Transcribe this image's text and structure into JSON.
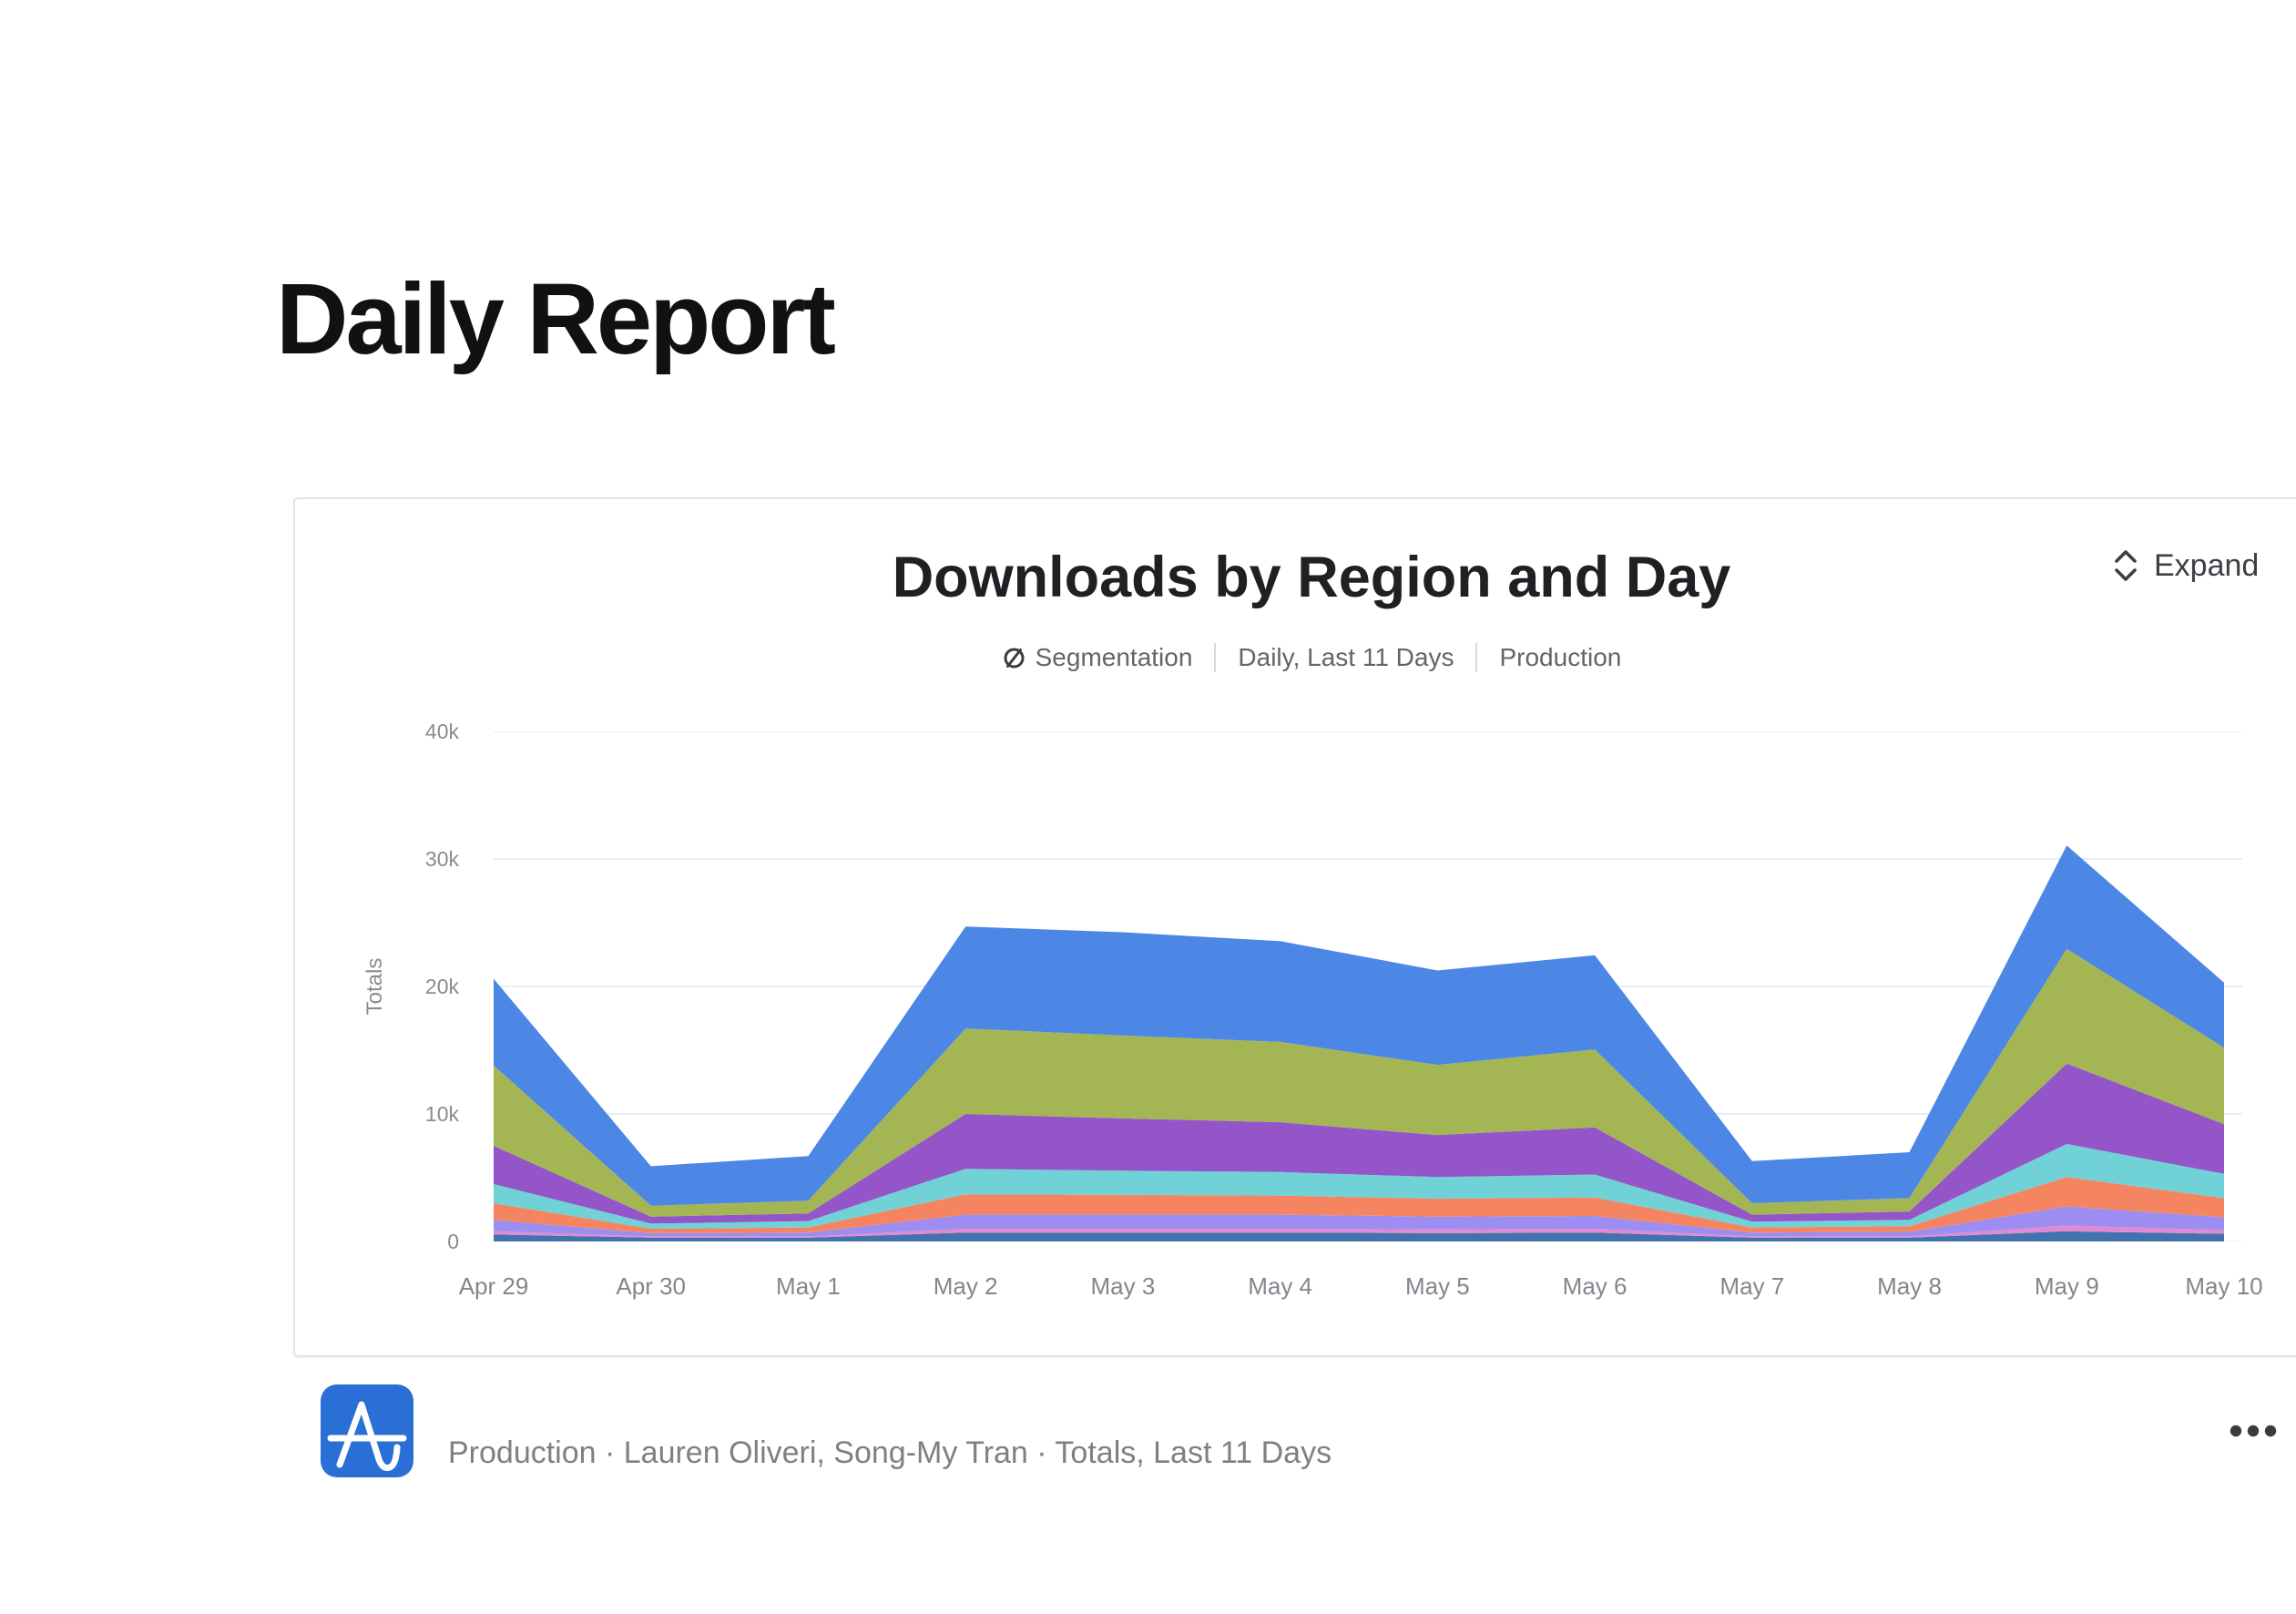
{
  "page": {
    "title": "Daily Report"
  },
  "chart_card": {
    "title": "Downloads by Region and Day",
    "subtitle": {
      "chart_type": "Segmentation",
      "date_range": "Daily, Last 11 Days",
      "environment": "Production"
    },
    "expand_label": "Expand",
    "icons": {
      "segmentation": "circle-slash-segmentation-icon",
      "expand": "chevrons-up-down-icon"
    }
  },
  "chart_data": {
    "type": "area",
    "stacked": true,
    "title": "Downloads by Region and Day",
    "xlabel": "",
    "ylabel": "Totals",
    "ylim": [
      0,
      40000
    ],
    "grid": true,
    "legend": "none",
    "categories": [
      "Apr 29",
      "Apr 30",
      "May 1",
      "May 2",
      "May 3",
      "May 4",
      "May 5",
      "May 6",
      "May 7",
      "May 8",
      "May 9",
      "May 10"
    ],
    "y_ticks": [
      {
        "label": "0",
        "value": 0
      },
      {
        "label": "10k",
        "value": 10000
      },
      {
        "label": "20k",
        "value": 20000
      },
      {
        "label": "30k",
        "value": 30000
      },
      {
        "label": "40k",
        "value": 40000
      }
    ],
    "series": [
      {
        "name": "steel-blue",
        "color": "#4273ad",
        "values": [
          550,
          300,
          300,
          700,
          700,
          700,
          650,
          700,
          300,
          300,
          800,
          600
        ]
      },
      {
        "name": "pink",
        "color": "#e189d3",
        "values": [
          250,
          100,
          100,
          300,
          300,
          300,
          300,
          300,
          100,
          100,
          450,
          300
        ]
      },
      {
        "name": "lavender",
        "color": "#9d8df0",
        "values": [
          900,
          250,
          300,
          1100,
          1100,
          1100,
          1000,
          1000,
          300,
          350,
          1500,
          1000
        ]
      },
      {
        "name": "orange",
        "color": "#f58560",
        "values": [
          1300,
          350,
          400,
          1600,
          1550,
          1500,
          1400,
          1450,
          400,
          450,
          2300,
          1500
        ]
      },
      {
        "name": "teal",
        "color": "#70d1d7",
        "values": [
          1500,
          400,
          500,
          2000,
          1900,
          1850,
          1700,
          1800,
          450,
          500,
          2600,
          1900
        ]
      },
      {
        "name": "purple",
        "color": "#9455c8",
        "values": [
          3000,
          550,
          600,
          4300,
          4100,
          3900,
          3300,
          3700,
          550,
          650,
          6300,
          3900
        ]
      },
      {
        "name": "olive",
        "color": "#a4b654",
        "values": [
          6300,
          850,
          1000,
          6700,
          6500,
          6300,
          5500,
          6100,
          900,
          1050,
          9000,
          6000
        ]
      },
      {
        "name": "blue",
        "color": "#4d87e6",
        "values": [
          6800,
          3100,
          3500,
          8000,
          8100,
          7900,
          7400,
          7400,
          3300,
          3600,
          8100,
          5100
        ]
      }
    ],
    "totals_by_day": [
      20600,
      5900,
      6700,
      24700,
      24250,
      23550,
      21250,
      22450,
      6300,
      7000,
      31050,
      20300
    ],
    "gridline_color": "#e8eef8"
  },
  "footer_card": {
    "description": "Production · Lauren Oliveri, Song-My Tran · Totals, Last 11 Days",
    "icons": {
      "app": "amplitude-a-wave-icon",
      "menu": "ellipsis-more-icon"
    }
  }
}
